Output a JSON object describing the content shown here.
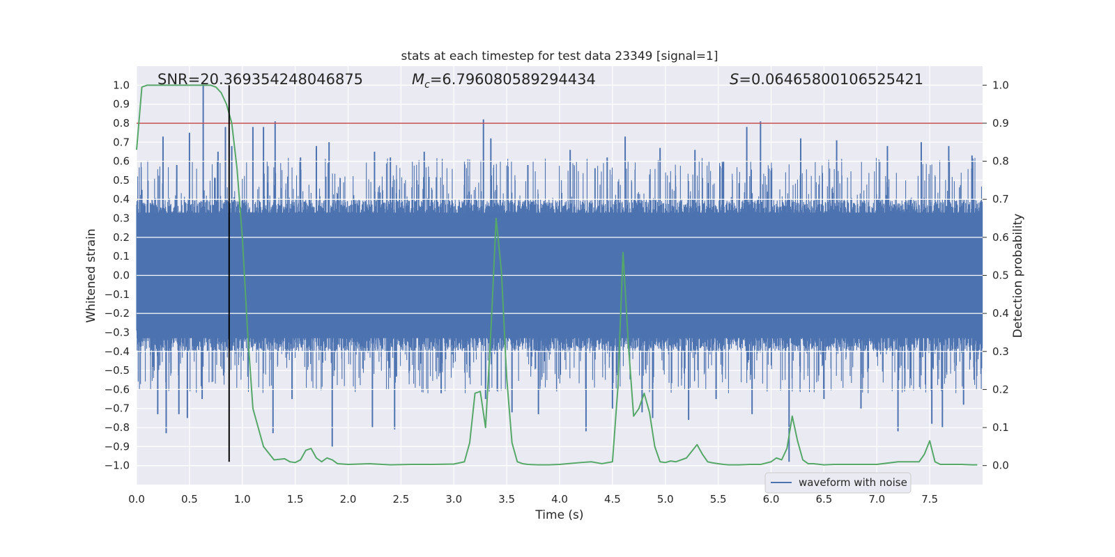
{
  "chart_data": {
    "type": "line",
    "title": "stats at each timestep for test data 23349 [signal=1]",
    "xlabel": "Time (s)",
    "ylabel": "Whitened strain",
    "y2label": "Detection probability",
    "xlim": [
      0.0,
      8.0
    ],
    "ylim": [
      -1.1,
      1.1
    ],
    "y2lim": [
      -0.05,
      1.05
    ],
    "x_ticks": [
      0.0,
      0.5,
      1.0,
      1.5,
      2.0,
      2.5,
      3.0,
      3.5,
      4.0,
      4.5,
      5.0,
      5.5,
      6.0,
      6.5,
      7.0,
      7.5
    ],
    "x_tick_labels": [
      "0.0",
      "0.5",
      "1.0",
      "1.5",
      "2.0",
      "2.5",
      "3.0",
      "3.5",
      "4.0",
      "4.5",
      "5.0",
      "5.5",
      "6.0",
      "6.5",
      "7.0",
      "7.5"
    ],
    "y_ticks": [
      1.0,
      0.9,
      0.8,
      0.7,
      0.6,
      0.5,
      0.4,
      0.3,
      0.2,
      0.1,
      0.0,
      -0.1,
      -0.2,
      -0.3,
      -0.4,
      -0.5,
      -0.6,
      -0.7,
      -0.8,
      -0.9,
      -1.0
    ],
    "y_tick_labels": [
      "1.0",
      "0.9",
      "0.8",
      "0.7",
      "0.6",
      "0.5",
      "0.4",
      "0.3",
      "0.2",
      "0.1",
      "0.0",
      "−0.1",
      "−0.2",
      "−0.3",
      "−0.4",
      "−0.5",
      "−0.6",
      "−0.7",
      "−0.8",
      "−0.9",
      "−1.0"
    ],
    "y2_ticks": [
      1.0,
      0.9,
      0.8,
      0.7,
      0.6,
      0.5,
      0.4,
      0.3,
      0.2,
      0.1,
      0.0
    ],
    "y2_tick_labels": [
      "1.0",
      "0.9",
      "0.8",
      "0.7",
      "0.6",
      "0.5",
      "0.4",
      "0.3",
      "0.2",
      "0.1",
      "0.0"
    ],
    "grid": true,
    "background": "#eaeaf2",
    "annotations": {
      "snr": "SNR=20.369354248046875",
      "mc_symbol": "M",
      "mc_sub": "c",
      "mc_value": "=6.796080589294434",
      "s_symbol": "S",
      "s_value": "=0.06465800106525421"
    },
    "threshold": {
      "y2": 0.9,
      "color": "#c44e52"
    },
    "marker_line": {
      "x": 0.875,
      "y_range": [
        -0.98,
        1.0
      ],
      "color": "#000000"
    },
    "legend": {
      "placement": "lower-right",
      "entries": [
        "waveform with noise"
      ]
    },
    "series": [
      {
        "name": "waveform with noise",
        "axis": "left",
        "color": "#4c72b0",
        "envelope_upper": 0.4,
        "envelope_lower": -0.4,
        "peaks": [
          [
            0.63,
            1.0
          ],
          [
            0.05,
            0.45
          ],
          [
            0.25,
            0.73
          ],
          [
            0.5,
            0.75
          ],
          [
            0.38,
            0.58
          ],
          [
            0.77,
            0.65
          ],
          [
            0.84,
            0.78
          ],
          [
            0.9,
            0.68
          ],
          [
            1.1,
            0.78
          ],
          [
            1.2,
            0.78
          ],
          [
            1.31,
            0.81
          ],
          [
            1.55,
            0.62
          ],
          [
            1.7,
            0.68
          ],
          [
            1.82,
            0.7
          ],
          [
            2.25,
            0.65
          ],
          [
            2.4,
            0.62
          ],
          [
            2.72,
            0.65
          ],
          [
            3.28,
            0.82
          ],
          [
            3.35,
            0.72
          ],
          [
            3.7,
            0.58
          ],
          [
            4.1,
            0.66
          ],
          [
            4.45,
            0.62
          ],
          [
            4.62,
            0.73
          ],
          [
            4.95,
            0.67
          ],
          [
            5.28,
            0.66
          ],
          [
            5.55,
            0.6
          ],
          [
            5.77,
            0.78
          ],
          [
            5.9,
            0.81
          ],
          [
            6.28,
            0.72
          ],
          [
            6.62,
            0.71
          ],
          [
            7.1,
            0.68
          ],
          [
            7.42,
            0.7
          ],
          [
            7.68,
            0.68
          ],
          [
            7.9,
            0.63
          ]
        ],
        "troughs": [
          [
            0.28,
            -0.83
          ],
          [
            0.2,
            -0.73
          ],
          [
            0.4,
            -0.73
          ],
          [
            0.48,
            -0.75
          ],
          [
            0.62,
            -0.65
          ],
          [
            1.29,
            -0.83
          ],
          [
            1.47,
            -0.65
          ],
          [
            1.85,
            -0.9
          ],
          [
            2.23,
            -0.8
          ],
          [
            2.44,
            -0.81
          ],
          [
            2.88,
            -0.62
          ],
          [
            3.3,
            -0.65
          ],
          [
            3.55,
            -0.72
          ],
          [
            3.8,
            -0.73
          ],
          [
            4.25,
            -0.82
          ],
          [
            4.5,
            -0.7
          ],
          [
            4.78,
            -0.72
          ],
          [
            4.88,
            -0.75
          ],
          [
            5.22,
            -0.76
          ],
          [
            5.48,
            -0.65
          ],
          [
            5.82,
            -0.73
          ],
          [
            6.17,
            -0.98
          ],
          [
            6.5,
            -0.65
          ],
          [
            6.85,
            -0.7
          ],
          [
            7.2,
            -0.82
          ],
          [
            7.52,
            -0.78
          ],
          [
            7.62,
            -0.8
          ],
          [
            7.82,
            -0.68
          ]
        ]
      },
      {
        "name": "",
        "axis": "right",
        "color": "#55a868",
        "x": [
          0.0,
          0.05,
          0.1,
          0.2,
          0.3,
          0.4,
          0.5,
          0.6,
          0.7,
          0.75,
          0.8,
          0.85,
          0.9,
          0.95,
          1.0,
          1.05,
          1.1,
          1.2,
          1.3,
          1.4,
          1.45,
          1.5,
          1.55,
          1.6,
          1.65,
          1.7,
          1.75,
          1.8,
          1.85,
          1.9,
          2.0,
          2.2,
          2.4,
          2.6,
          2.8,
          3.0,
          3.1,
          3.15,
          3.2,
          3.25,
          3.3,
          3.35,
          3.4,
          3.45,
          3.5,
          3.55,
          3.6,
          3.65,
          3.7,
          3.8,
          3.9,
          4.0,
          4.2,
          4.3,
          4.4,
          4.5,
          4.55,
          4.6,
          4.65,
          4.7,
          4.75,
          4.8,
          4.85,
          4.9,
          4.95,
          5.0,
          5.05,
          5.1,
          5.2,
          5.3,
          5.35,
          5.4,
          5.45,
          5.5,
          5.55,
          5.6,
          5.7,
          5.8,
          5.9,
          6.0,
          6.05,
          6.1,
          6.15,
          6.2,
          6.25,
          6.3,
          6.35,
          6.4,
          6.5,
          6.6,
          6.8,
          7.0,
          7.2,
          7.4,
          7.45,
          7.5,
          7.55,
          7.6,
          7.7,
          7.8,
          7.9,
          7.95
        ],
        "values": [
          0.83,
          0.995,
          1.0,
          1.0,
          1.0,
          1.0,
          1.0,
          1.0,
          1.0,
          0.995,
          0.98,
          0.95,
          0.9,
          0.78,
          0.6,
          0.35,
          0.15,
          0.05,
          0.015,
          0.018,
          0.01,
          0.008,
          0.015,
          0.04,
          0.045,
          0.02,
          0.01,
          0.02,
          0.015,
          0.005,
          0.003,
          0.005,
          0.002,
          0.003,
          0.003,
          0.004,
          0.01,
          0.06,
          0.19,
          0.195,
          0.1,
          0.35,
          0.65,
          0.51,
          0.23,
          0.06,
          0.01,
          0.005,
          0.003,
          0.002,
          0.002,
          0.003,
          0.008,
          0.01,
          0.005,
          0.01,
          0.2,
          0.56,
          0.32,
          0.13,
          0.15,
          0.19,
          0.14,
          0.05,
          0.01,
          0.008,
          0.012,
          0.01,
          0.02,
          0.055,
          0.03,
          0.01,
          0.007,
          0.005,
          0.003,
          0.002,
          0.002,
          0.003,
          0.003,
          0.01,
          0.02,
          0.015,
          0.045,
          0.13,
          0.065,
          0.015,
          0.005,
          0.005,
          0.002,
          0.003,
          0.003,
          0.003,
          0.01,
          0.01,
          0.03,
          0.065,
          0.01,
          0.003,
          0.003,
          0.003,
          0.002,
          0.002
        ]
      }
    ]
  }
}
